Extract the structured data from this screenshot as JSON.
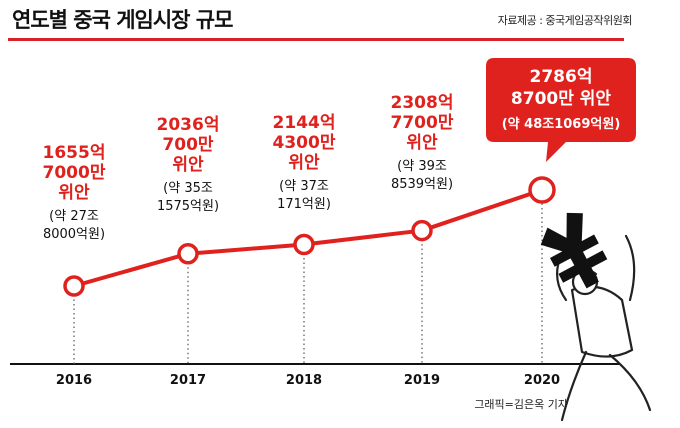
{
  "header": {
    "title": "연도별 중국 게임시장 규모",
    "source": "자료제공 : 중국게임공작위원회"
  },
  "credit": "그래픽=김은옥 기자",
  "chart_data": {
    "type": "line",
    "title": "연도별 중국 게임시장 규모",
    "x": [
      "2016",
      "2017",
      "2018",
      "2019",
      "2020"
    ],
    "series": [
      {
        "values": [
          1655.7,
          2036.07,
          2144.43,
          2308.77,
          2786.87
        ]
      }
    ],
    "annotations": [
      {
        "red": [
          "1655억",
          "7000만",
          "위안"
        ],
        "black": [
          "(약 27조",
          "8000억원)"
        ]
      },
      {
        "red": [
          "2036억",
          "700만",
          "위안"
        ],
        "black": [
          "(약 35조",
          "1575억원)"
        ]
      },
      {
        "red": [
          "2144억",
          "4300만",
          "위안"
        ],
        "black": [
          "(약 37조",
          "171억원)"
        ]
      },
      {
        "red": [
          "2308억",
          "7700만",
          "위안"
        ],
        "black": [
          "(약 39조",
          "8539억원)"
        ]
      },
      {
        "red": [
          "2786억",
          "8700만 위안"
        ],
        "black": [
          "(약 48조1069억원)"
        ]
      }
    ],
    "ylim": [
      1400,
      3200
    ],
    "grid": false,
    "colors": {
      "accent": "#e0221e",
      "axis": "#111111",
      "callout_bg": "#e0221e"
    }
  }
}
